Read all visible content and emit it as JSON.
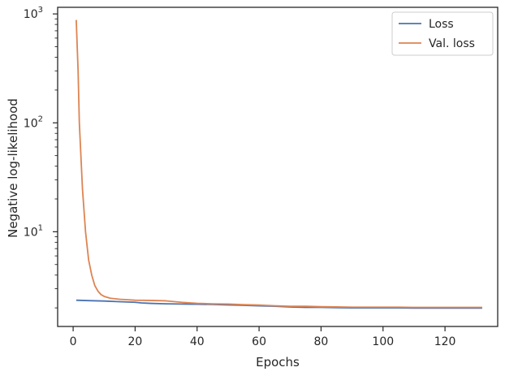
{
  "chart_data": {
    "type": "line",
    "xlabel": "Epochs",
    "ylabel": "Negative log-likelihood",
    "xlim": [
      -5,
      137
    ],
    "ylim": [
      1.35,
      1150
    ],
    "yscale": "log",
    "x_ticks": [
      0,
      20,
      40,
      60,
      80,
      100,
      120
    ],
    "y_major_ticks": [
      {
        "value": 10,
        "base": "10",
        "exp": "1"
      },
      {
        "value": 100,
        "base": "10",
        "exp": "2"
      },
      {
        "value": 1000,
        "base": "10",
        "exp": "3"
      }
    ],
    "grid": false,
    "legend_position": "upper right",
    "series": [
      {
        "name": "Loss",
        "color": "#4c72b0",
        "points": [
          [
            1,
            2.35
          ],
          [
            5,
            2.33
          ],
          [
            10,
            2.31
          ],
          [
            15,
            2.28
          ],
          [
            20,
            2.25
          ],
          [
            22,
            2.22
          ],
          [
            25,
            2.2
          ],
          [
            30,
            2.18
          ],
          [
            35,
            2.17
          ],
          [
            40,
            2.16
          ],
          [
            45,
            2.15
          ],
          [
            50,
            2.13
          ],
          [
            55,
            2.11
          ],
          [
            60,
            2.09
          ],
          [
            65,
            2.07
          ],
          [
            70,
            2.04
          ],
          [
            75,
            2.02
          ],
          [
            80,
            2.02
          ],
          [
            85,
            2.01
          ],
          [
            90,
            2.0
          ],
          [
            95,
            2.0
          ],
          [
            100,
            2.0
          ],
          [
            105,
            2.0
          ],
          [
            110,
            1.99
          ],
          [
            115,
            1.99
          ],
          [
            120,
            1.99
          ],
          [
            125,
            1.99
          ],
          [
            132,
            1.99
          ]
        ]
      },
      {
        "name": "Val. loss",
        "color": "#dd8452",
        "points": [
          [
            1,
            880
          ],
          [
            1.6,
            300
          ],
          [
            2,
            100
          ],
          [
            3,
            25
          ],
          [
            4,
            10
          ],
          [
            5,
            5.5
          ],
          [
            6,
            4
          ],
          [
            7,
            3.2
          ],
          [
            8,
            2.85
          ],
          [
            9,
            2.65
          ],
          [
            10,
            2.55
          ],
          [
            12,
            2.45
          ],
          [
            15,
            2.4
          ],
          [
            20,
            2.35
          ],
          [
            25,
            2.34
          ],
          [
            30,
            2.32
          ],
          [
            35,
            2.25
          ],
          [
            40,
            2.2
          ],
          [
            45,
            2.18
          ],
          [
            50,
            2.17
          ],
          [
            55,
            2.14
          ],
          [
            60,
            2.12
          ],
          [
            65,
            2.09
          ],
          [
            70,
            2.07
          ],
          [
            75,
            2.07
          ],
          [
            80,
            2.05
          ],
          [
            85,
            2.04
          ],
          [
            90,
            2.03
          ],
          [
            95,
            2.03
          ],
          [
            100,
            2.03
          ],
          [
            105,
            2.03
          ],
          [
            110,
            2.02
          ],
          [
            115,
            2.02
          ],
          [
            120,
            2.02
          ],
          [
            125,
            2.02
          ],
          [
            132,
            2.02
          ]
        ]
      }
    ]
  }
}
